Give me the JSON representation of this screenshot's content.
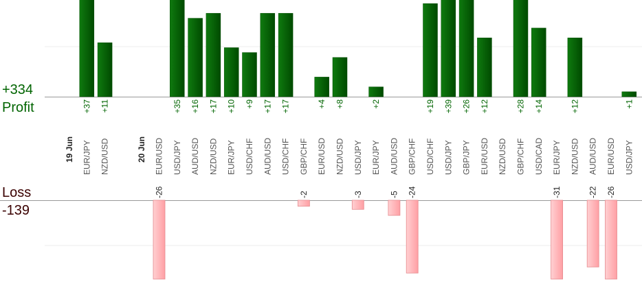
{
  "summary": {
    "profit_total": "+334",
    "profit_label": "Profit",
    "loss_label": "Loss",
    "loss_total": "-139"
  },
  "colors": {
    "profit_bar": "#0b6b0b",
    "profit_bar_dark": "#004d00",
    "profit_text": "#006400",
    "loss_bar": "#ffb6b9",
    "loss_bar_stroke": "#e58a8e",
    "loss_text": "#3a0000",
    "axis": "#999999",
    "grid": "#eeeeee"
  },
  "chart_data": {
    "type": "bar",
    "profit_axis": {
      "ylim": [
        0,
        20
      ],
      "gridline": 10
    },
    "loss_axis": {
      "ylim": [
        -26,
        0
      ],
      "gridline": -17
    },
    "groups": [
      {
        "date": "19 Jun",
        "trades": [
          {
            "symbol": "EUR/JPY",
            "profit": 37,
            "loss": null
          },
          {
            "symbol": "NZD/USD",
            "profit": 11,
            "loss": null
          }
        ]
      },
      {
        "date": "20 Jun",
        "trades": [
          {
            "symbol": "EUR/USD",
            "profit": null,
            "loss": -26
          },
          {
            "symbol": "USD/JPY",
            "profit": 35,
            "loss": null
          },
          {
            "symbol": "AUD/USD",
            "profit": 16,
            "loss": null
          },
          {
            "symbol": "NZD/USD",
            "profit": 17,
            "loss": null
          },
          {
            "symbol": "EUR/JPY",
            "profit": 10,
            "loss": null
          },
          {
            "symbol": "USD/CHF",
            "profit": 9,
            "loss": null
          },
          {
            "symbol": "AUD/USD",
            "profit": 17,
            "loss": null
          },
          {
            "symbol": "USD/CHF",
            "profit": 17,
            "loss": null
          },
          {
            "symbol": "GBP/CHF",
            "profit": null,
            "loss": -2
          },
          {
            "symbol": "EUR/USD",
            "profit": 4,
            "loss": null
          },
          {
            "symbol": "NZD/USD",
            "profit": 8,
            "loss": null
          },
          {
            "symbol": "USD/JPY",
            "profit": null,
            "loss": -3
          },
          {
            "symbol": "EUR/JPY",
            "profit": 2,
            "loss": null
          },
          {
            "symbol": "AUD/USD",
            "profit": null,
            "loss": -5
          },
          {
            "symbol": "GBP/CHF",
            "profit": null,
            "loss": -24
          },
          {
            "symbol": "USD/CHF",
            "profit": 19,
            "loss": null
          },
          {
            "symbol": "USD/JPY",
            "profit": 39,
            "loss": null
          },
          {
            "symbol": "GBP/JPY",
            "profit": 26,
            "loss": null
          },
          {
            "symbol": "EUR/USD",
            "profit": 12,
            "loss": null
          },
          {
            "symbol": "NZD/USD",
            "profit": null,
            "loss": null
          },
          {
            "symbol": "GBP/CHF",
            "profit": 28,
            "loss": null
          },
          {
            "symbol": "USD/CAD",
            "profit": 14,
            "loss": null
          },
          {
            "symbol": "EUR/JPY",
            "profit": null,
            "loss": -31
          },
          {
            "symbol": "NZD/USD",
            "profit": 12,
            "loss": null
          },
          {
            "symbol": "AUD/USD",
            "profit": null,
            "loss": -22
          },
          {
            "symbol": "EUR/USD",
            "profit": null,
            "loss": -26
          },
          {
            "symbol": "USD/JPY",
            "profit": 1,
            "loss": null
          }
        ]
      }
    ]
  }
}
